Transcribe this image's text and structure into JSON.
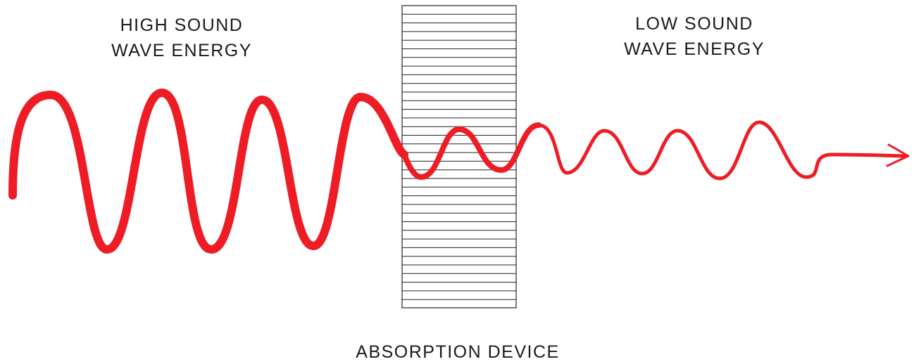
{
  "labels": {
    "high_energy": {
      "line1": "HIGH SOUND",
      "line2": "WAVE ENERGY"
    },
    "low_energy": {
      "line1": "LOW SOUND",
      "line2": "WAVE ENERGY"
    },
    "device": "ABSORPTION DEVICE"
  },
  "colors": {
    "wave": "#ee1c25",
    "text": "#1a1a1a",
    "device_outline": "#222222",
    "background": "#ffffff"
  }
}
